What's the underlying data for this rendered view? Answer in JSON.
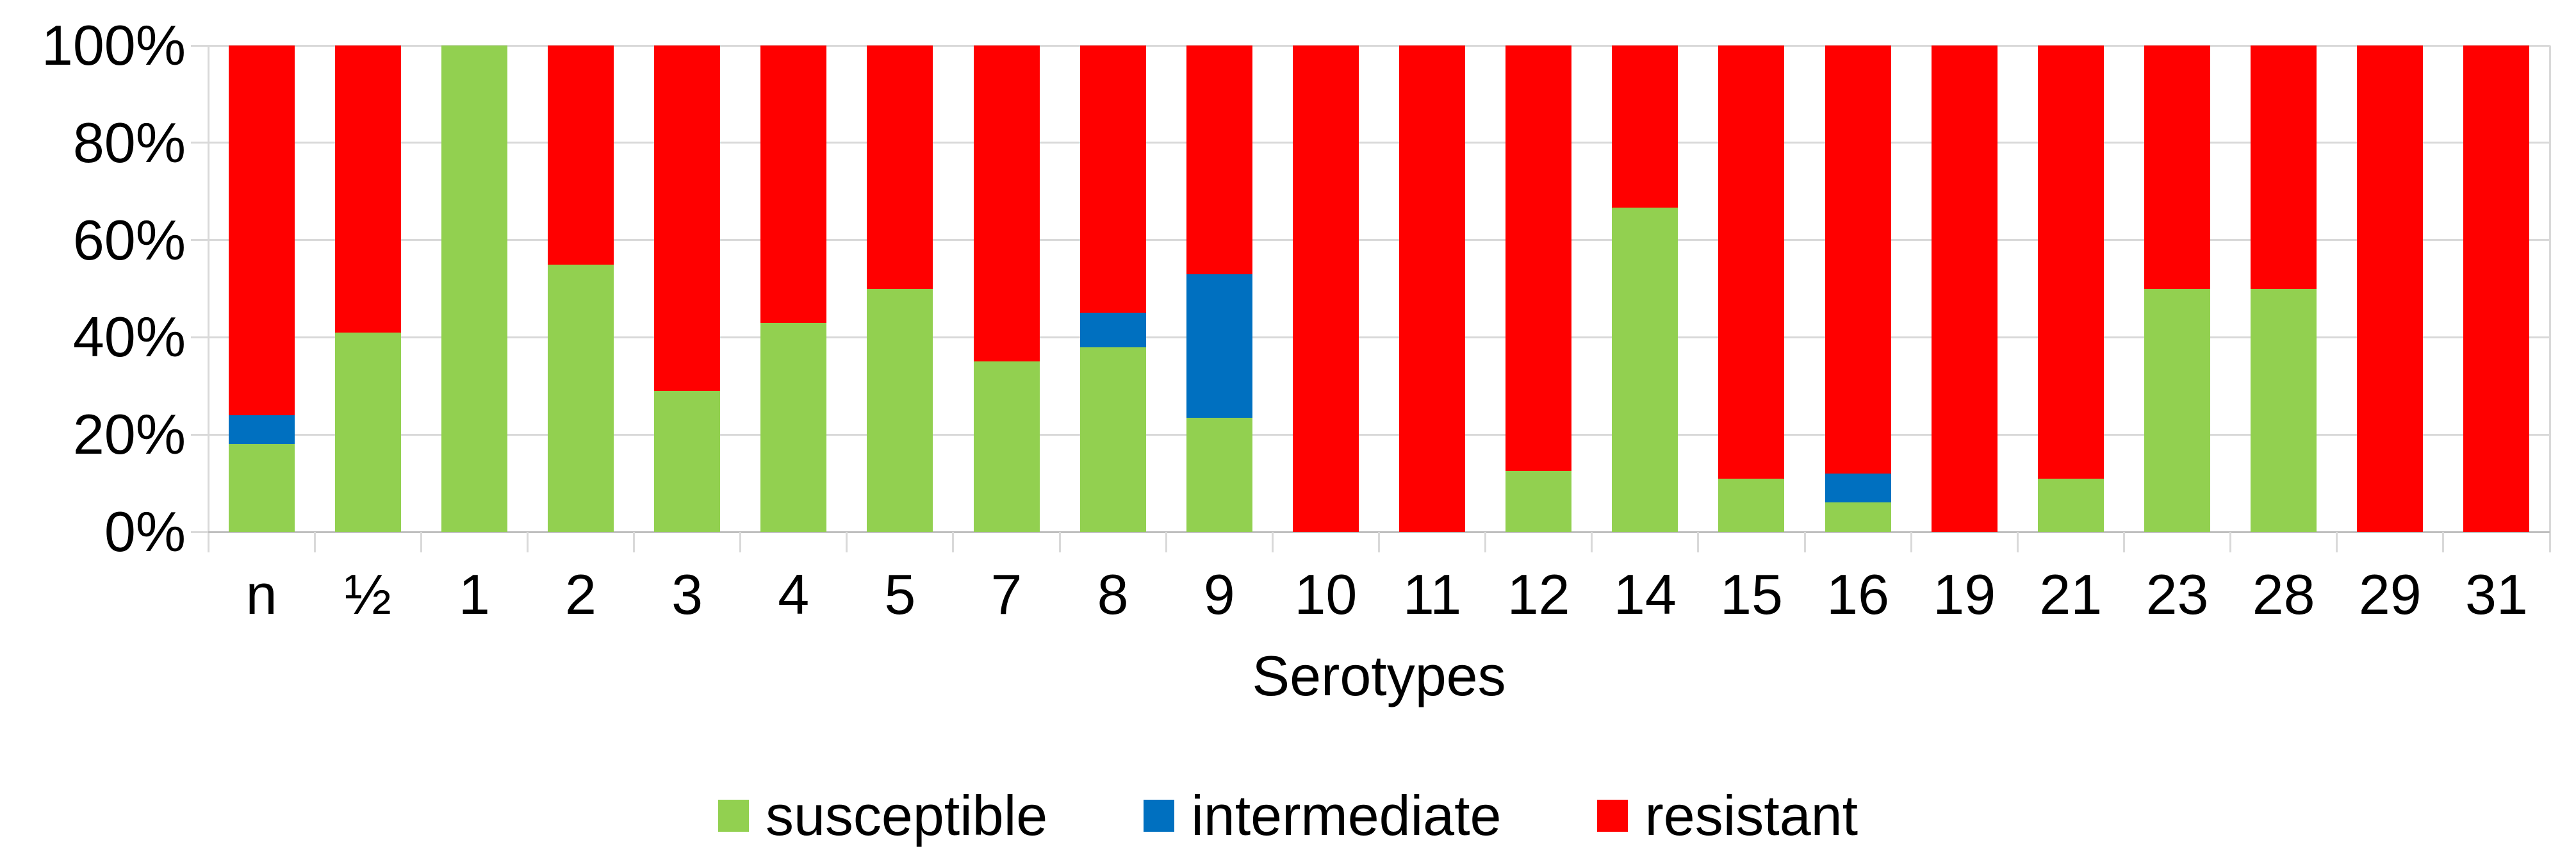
{
  "chart_data": {
    "type": "bar",
    "subtype": "stacked-100-percent",
    "title": "",
    "xlabel": "Serotypes",
    "ylabel": "",
    "ylim": [
      0,
      100
    ],
    "y_tick_labels": [
      "0%",
      "20%",
      "40%",
      "60%",
      "80%",
      "100%"
    ],
    "grid": true,
    "legend_position": "bottom",
    "categories": [
      "n",
      "½",
      "1",
      "2",
      "3",
      "4",
      "5",
      "7",
      "8",
      "9",
      "10",
      "11",
      "12",
      "14",
      "15",
      "16",
      "19",
      "21",
      "23",
      "28",
      "29",
      "31"
    ],
    "series": [
      {
        "name": "susceptible",
        "color": "#92D050",
        "values": [
          18,
          41,
          100,
          55,
          29,
          43,
          50,
          35,
          38,
          23.5,
          0,
          0,
          12.5,
          66.7,
          11,
          6,
          0,
          11,
          50,
          50,
          0,
          0
        ]
      },
      {
        "name": "intermediate",
        "color": "#0070C0",
        "values": [
          6,
          0,
          0,
          0,
          0,
          0,
          0,
          0,
          7,
          29.5,
          0,
          0,
          0,
          0,
          0,
          6,
          0,
          0,
          0,
          0,
          0,
          0
        ]
      },
      {
        "name": "resistant",
        "color": "#FF0000",
        "values": [
          76,
          59,
          0,
          45,
          71,
          57,
          50,
          65,
          55,
          47,
          100,
          100,
          87.5,
          33.3,
          89,
          88,
          100,
          89,
          50,
          50,
          100,
          100
        ]
      }
    ]
  },
  "legend": {
    "items": [
      {
        "label": "susceptible",
        "color": "#92D050"
      },
      {
        "label": "intermediate",
        "color": "#0070C0"
      },
      {
        "label": "resistant",
        "color": "#FF0000"
      }
    ]
  },
  "colors": {
    "background": "#FFFFFF",
    "gridline": "#D9D9D9",
    "axis_line": "#BFBFBF",
    "text": "#000000"
  }
}
